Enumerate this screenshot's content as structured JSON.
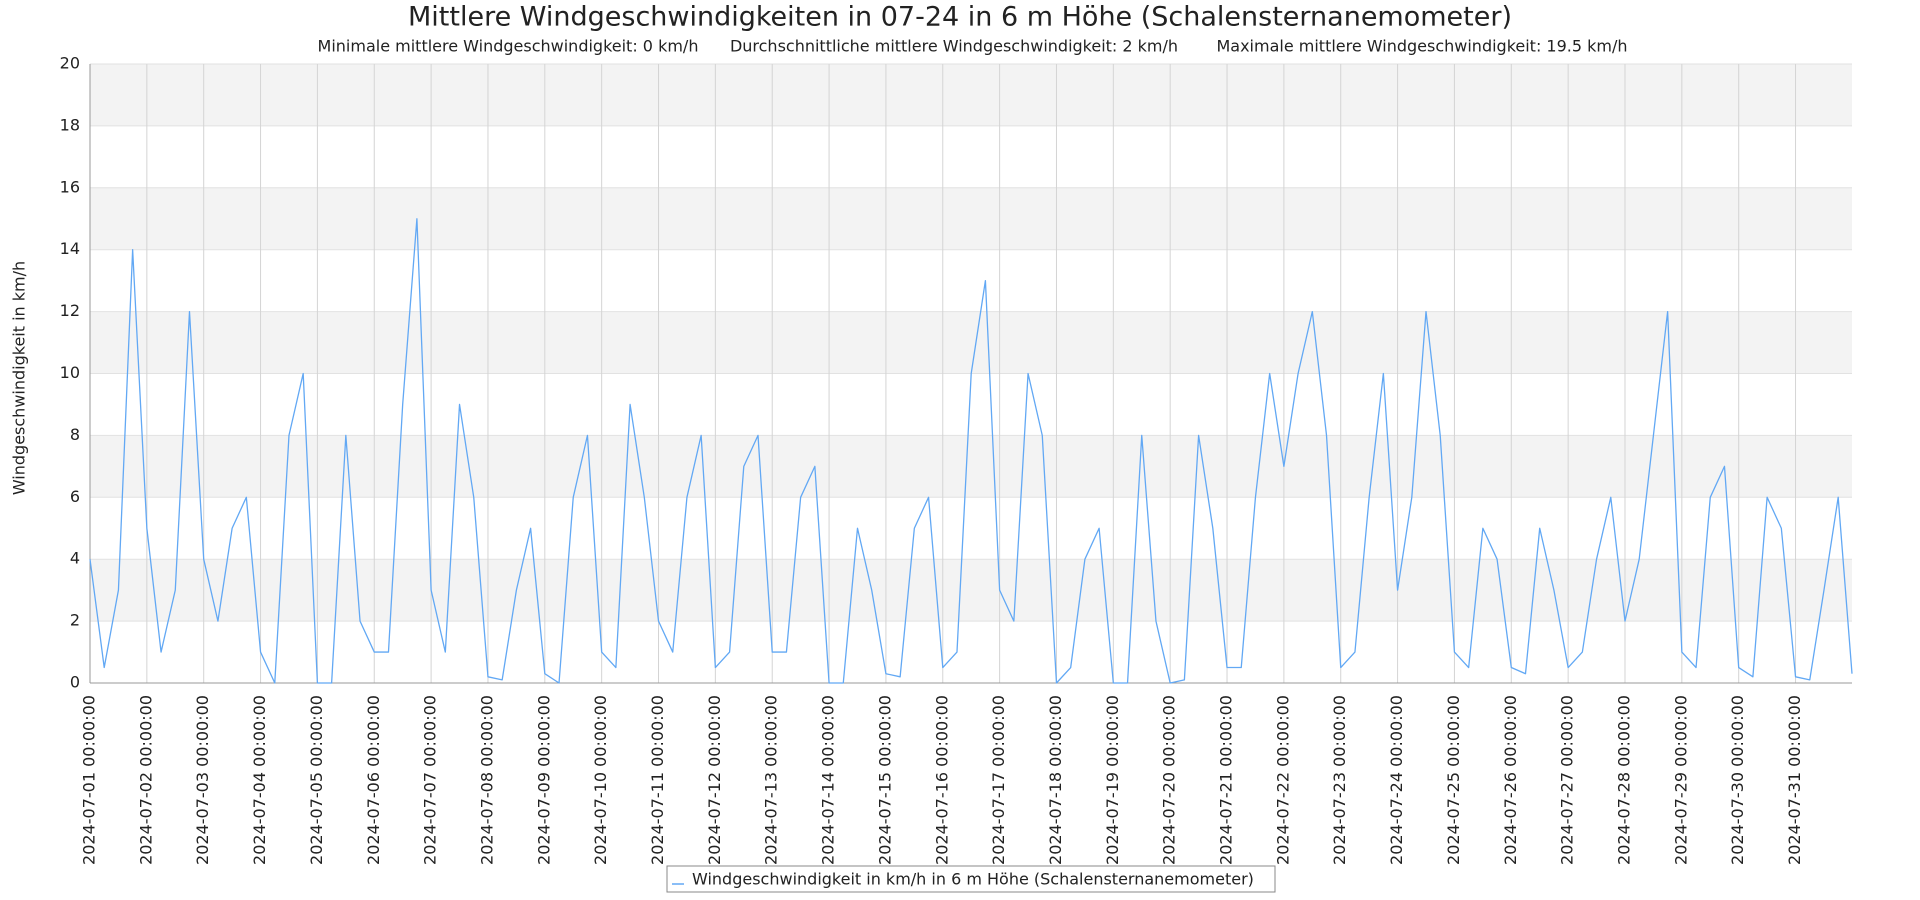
{
  "chart_data": {
    "type": "line",
    "title": "Mittlere Windgeschwindigkeiten in 07-24 in 6 m Höhe (Schalensternanemometer)",
    "subtitle": [
      "Minimale mittlere Windgeschwindigkeit: 0 km/h",
      "Durchschnittliche mittlere Windgeschwindigkeit: 2 km/h",
      "Maximale mittlere Windgeschwindigkeit: 19.5 km/h"
    ],
    "y_label": "Windgeschwindigkeit in km/h",
    "ylim": [
      0,
      20
    ],
    "yticks": [
      0,
      2,
      4,
      6,
      8,
      10,
      12,
      14,
      16,
      18,
      20
    ],
    "xlim": [
      "2024-07-01 00:00:00",
      "2024-07-31 23:50:00"
    ],
    "xticks": [
      "2024-07-01 00:00:00",
      "2024-07-02 00:00:00",
      "2024-07-03 00:00:00",
      "2024-07-04 00:00:00",
      "2024-07-05 00:00:00",
      "2024-07-06 00:00:00",
      "2024-07-07 00:00:00",
      "2024-07-08 00:00:00",
      "2024-07-09 00:00:00",
      "2024-07-10 00:00:00",
      "2024-07-11 00:00:00",
      "2024-07-12 00:00:00",
      "2024-07-13 00:00:00",
      "2024-07-14 00:00:00",
      "2024-07-15 00:00:00",
      "2024-07-16 00:00:00",
      "2024-07-17 00:00:00",
      "2024-07-18 00:00:00",
      "2024-07-19 00:00:00",
      "2024-07-20 00:00:00",
      "2024-07-21 00:00:00",
      "2024-07-22 00:00:00",
      "2024-07-23 00:00:00",
      "2024-07-24 00:00:00",
      "2024-07-25 00:00:00",
      "2024-07-26 00:00:00",
      "2024-07-27 00:00:00",
      "2024-07-28 00:00:00",
      "2024-07-29 00:00:00",
      "2024-07-30 00:00:00",
      "2024-07-31 00:00:00"
    ],
    "grid": true,
    "legend": "bottom",
    "x": [
      "2024-07-01 00:00:00",
      "2024-07-01 06:00:00",
      "2024-07-01 12:00:00",
      "2024-07-01 18:00:00",
      "2024-07-02 00:00:00",
      "2024-07-02 06:00:00",
      "2024-07-02 12:00:00",
      "2024-07-02 18:00:00",
      "2024-07-03 00:00:00",
      "2024-07-03 06:00:00",
      "2024-07-03 12:00:00",
      "2024-07-03 18:00:00",
      "2024-07-04 00:00:00",
      "2024-07-04 06:00:00",
      "2024-07-04 12:00:00",
      "2024-07-04 18:00:00",
      "2024-07-05 00:00:00",
      "2024-07-05 06:00:00",
      "2024-07-05 12:00:00",
      "2024-07-05 18:00:00",
      "2024-07-06 00:00:00",
      "2024-07-06 06:00:00",
      "2024-07-06 12:00:00",
      "2024-07-06 18:00:00",
      "2024-07-07 00:00:00",
      "2024-07-07 06:00:00",
      "2024-07-07 12:00:00",
      "2024-07-07 18:00:00",
      "2024-07-08 00:00:00",
      "2024-07-08 06:00:00",
      "2024-07-08 12:00:00",
      "2024-07-08 18:00:00",
      "2024-07-09 00:00:00",
      "2024-07-09 06:00:00",
      "2024-07-09 12:00:00",
      "2024-07-09 18:00:00",
      "2024-07-10 00:00:00",
      "2024-07-10 06:00:00",
      "2024-07-10 12:00:00",
      "2024-07-10 18:00:00",
      "2024-07-11 00:00:00",
      "2024-07-11 06:00:00",
      "2024-07-11 12:00:00",
      "2024-07-11 18:00:00",
      "2024-07-12 00:00:00",
      "2024-07-12 06:00:00",
      "2024-07-12 12:00:00",
      "2024-07-12 18:00:00",
      "2024-07-13 00:00:00",
      "2024-07-13 06:00:00",
      "2024-07-13 12:00:00",
      "2024-07-13 18:00:00",
      "2024-07-14 00:00:00",
      "2024-07-14 06:00:00",
      "2024-07-14 12:00:00",
      "2024-07-14 18:00:00",
      "2024-07-15 00:00:00",
      "2024-07-15 06:00:00",
      "2024-07-15 12:00:00",
      "2024-07-15 18:00:00",
      "2024-07-16 00:00:00",
      "2024-07-16 06:00:00",
      "2024-07-16 12:00:00",
      "2024-07-16 18:00:00",
      "2024-07-17 00:00:00",
      "2024-07-17 06:00:00",
      "2024-07-17 12:00:00",
      "2024-07-17 18:00:00",
      "2024-07-18 00:00:00",
      "2024-07-18 06:00:00",
      "2024-07-18 12:00:00",
      "2024-07-18 18:00:00",
      "2024-07-19 00:00:00",
      "2024-07-19 06:00:00",
      "2024-07-19 12:00:00",
      "2024-07-19 18:00:00",
      "2024-07-20 00:00:00",
      "2024-07-20 06:00:00",
      "2024-07-20 12:00:00",
      "2024-07-20 18:00:00",
      "2024-07-21 00:00:00",
      "2024-07-21 06:00:00",
      "2024-07-21 12:00:00",
      "2024-07-21 18:00:00",
      "2024-07-22 00:00:00",
      "2024-07-22 06:00:00",
      "2024-07-22 12:00:00",
      "2024-07-22 18:00:00",
      "2024-07-23 00:00:00",
      "2024-07-23 06:00:00",
      "2024-07-23 12:00:00",
      "2024-07-23 18:00:00",
      "2024-07-24 00:00:00",
      "2024-07-24 06:00:00",
      "2024-07-24 12:00:00",
      "2024-07-24 18:00:00",
      "2024-07-25 00:00:00",
      "2024-07-25 06:00:00",
      "2024-07-25 12:00:00",
      "2024-07-25 18:00:00",
      "2024-07-26 00:00:00",
      "2024-07-26 06:00:00",
      "2024-07-26 12:00:00",
      "2024-07-26 18:00:00",
      "2024-07-27 00:00:00",
      "2024-07-27 06:00:00",
      "2024-07-27 12:00:00",
      "2024-07-27 18:00:00",
      "2024-07-28 00:00:00",
      "2024-07-28 06:00:00",
      "2024-07-28 12:00:00",
      "2024-07-28 18:00:00",
      "2024-07-29 00:00:00",
      "2024-07-29 06:00:00",
      "2024-07-29 12:00:00",
      "2024-07-29 18:00:00",
      "2024-07-30 00:00:00",
      "2024-07-30 06:00:00",
      "2024-07-30 12:00:00",
      "2024-07-30 18:00:00",
      "2024-07-31 00:00:00",
      "2024-07-31 06:00:00",
      "2024-07-31 12:00:00",
      "2024-07-31 18:00:00",
      "2024-07-31 23:50:00"
    ],
    "series": [
      {
        "name": "Windgeschwindigkeit in km/h in 6 m Höhe (Schalensternanemometer)",
        "color": "#62a8f4",
        "values": [
          4,
          0.5,
          3,
          14,
          5,
          1,
          3,
          12,
          4,
          2,
          5,
          6,
          1,
          0,
          8,
          10,
          0,
          0,
          8,
          2,
          1,
          1,
          9,
          15,
          3,
          1,
          9,
          6,
          0.2,
          0.1,
          3,
          5,
          0.3,
          0,
          6,
          8,
          1,
          0.5,
          9,
          6,
          2,
          1,
          6,
          8,
          0.5,
          1,
          7,
          8,
          1,
          1,
          6,
          7,
          0,
          0,
          5,
          3,
          0.3,
          0.2,
          5,
          6,
          0.5,
          1,
          10,
          13,
          3,
          2,
          10,
          8,
          0,
          0.5,
          4,
          5,
          0,
          0,
          8,
          2,
          0,
          0.1,
          8,
          5,
          0.5,
          0.5,
          6,
          10,
          7,
          10,
          12,
          8,
          0.5,
          1,
          6,
          10,
          3,
          6,
          12,
          8,
          1,
          0.5,
          5,
          4,
          0.5,
          0.3,
          5,
          3,
          0.5,
          1,
          4,
          6,
          2,
          4,
          8,
          12,
          1,
          0.5,
          6,
          7,
          0.5,
          0.2,
          6,
          5,
          0.2,
          0.1,
          3,
          6,
          0.3
        ]
      }
    ]
  }
}
